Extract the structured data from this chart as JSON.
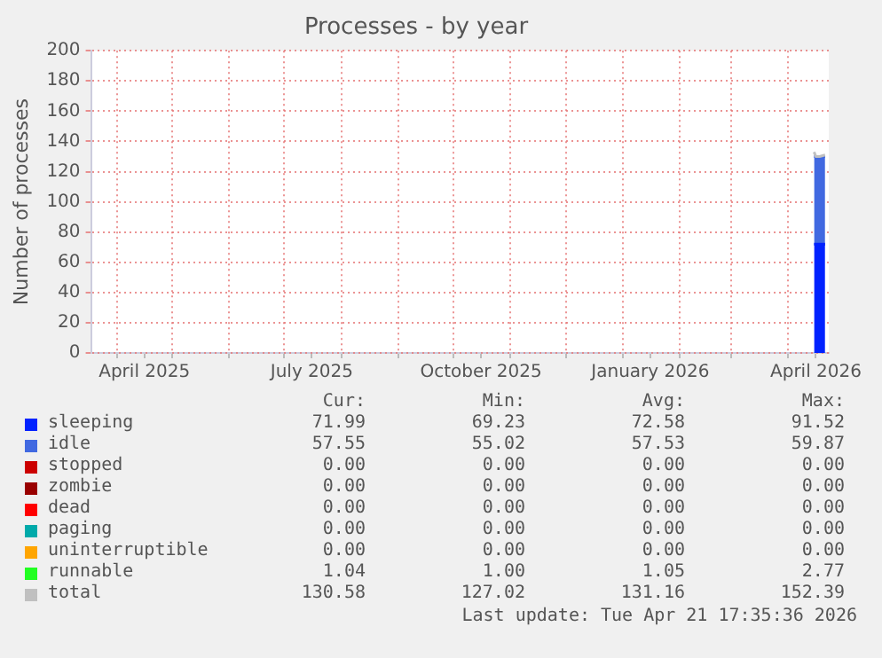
{
  "chart_data": {
    "type": "area",
    "title": "Processes - by year",
    "ylabel": "Number of processes",
    "stacked": true,
    "grid": true,
    "legend": "bottom",
    "marker": "none",
    "x": [
      "2026-04-15",
      "2026-04-16",
      "2026-04-18",
      "2026-04-21"
    ],
    "xlim": [
      "2025-03-18",
      "2026-04-23"
    ],
    "xticks": [
      {
        "value": "2025-04-01",
        "label": null
      },
      {
        "value": "2025-04-16",
        "label": "April 2025"
      },
      {
        "value": "2025-05-01",
        "label": null
      },
      {
        "value": "2025-06-01",
        "label": null
      },
      {
        "value": "2025-07-01",
        "label": null
      },
      {
        "value": "2025-07-16",
        "label": "July 2025"
      },
      {
        "value": "2025-08-01",
        "label": null
      },
      {
        "value": "2025-09-01",
        "label": null
      },
      {
        "value": "2025-10-01",
        "label": null
      },
      {
        "value": "2025-10-16",
        "label": "October 2025"
      },
      {
        "value": "2025-11-01",
        "label": null
      },
      {
        "value": "2025-12-01",
        "label": null
      },
      {
        "value": "2026-01-01",
        "label": null
      },
      {
        "value": "2026-01-16",
        "label": "January 2026"
      },
      {
        "value": "2026-02-01",
        "label": null
      },
      {
        "value": "2026-03-01",
        "label": null
      },
      {
        "value": "2026-04-01",
        "label": null
      },
      {
        "value": "2026-04-16",
        "label": "April 2026"
      }
    ],
    "ylim": [
      0,
      200
    ],
    "yticks": [
      0,
      20,
      40,
      60,
      80,
      100,
      120,
      140,
      160,
      180,
      200
    ],
    "series": [
      {
        "name": "sleeping",
        "color": "#0022ff",
        "values": [
          72,
          72,
          72,
          72
        ]
      },
      {
        "name": "idle",
        "color": "#4169e1",
        "values": [
          58,
          58,
          58,
          58
        ]
      },
      {
        "name": "stopped",
        "color": "#cc0000",
        "values": [
          null,
          null,
          null,
          null
        ]
      },
      {
        "name": "zombie",
        "color": "#990000",
        "values": [
          null,
          null,
          null,
          null
        ]
      },
      {
        "name": "dead",
        "color": "#ff0000",
        "values": [
          null,
          null,
          null,
          null
        ]
      },
      {
        "name": "paging",
        "color": "#00aaaa",
        "values": [
          null,
          null,
          null,
          null
        ]
      },
      {
        "name": "uninterruptible",
        "color": "#ffa500",
        "values": [
          null,
          null,
          null,
          null
        ]
      },
      {
        "name": "runnable",
        "color": "#22ff22",
        "values": [
          null,
          null,
          null,
          null
        ]
      },
      {
        "name": "total",
        "type": "line",
        "color": "#c0c0c0",
        "values": [
          133,
          130,
          130,
          131
        ]
      }
    ],
    "annotations": [
      "Cur:",
      "Min:",
      "Avg:",
      "Max:",
      "71.99",
      "69.23",
      "72.58",
      "91.52",
      "57.55",
      "55.02",
      "57.53",
      "59.87",
      "0.00",
      "0.00",
      "0.00",
      "0.00",
      "0.00",
      "0.00",
      "0.00",
      "0.00",
      "0.00",
      "0.00",
      "0.00",
      "0.00",
      "0.00",
      "0.00",
      "0.00",
      "0.00",
      "0.00",
      "0.00",
      "0.00",
      "0.00",
      "1.04",
      "1.00",
      "1.05",
      "2.77",
      "130.58",
      "127.02",
      "131.16",
      "152.39",
      "Last update: Tue Apr 21 17:35:36 2026"
    ]
  }
}
